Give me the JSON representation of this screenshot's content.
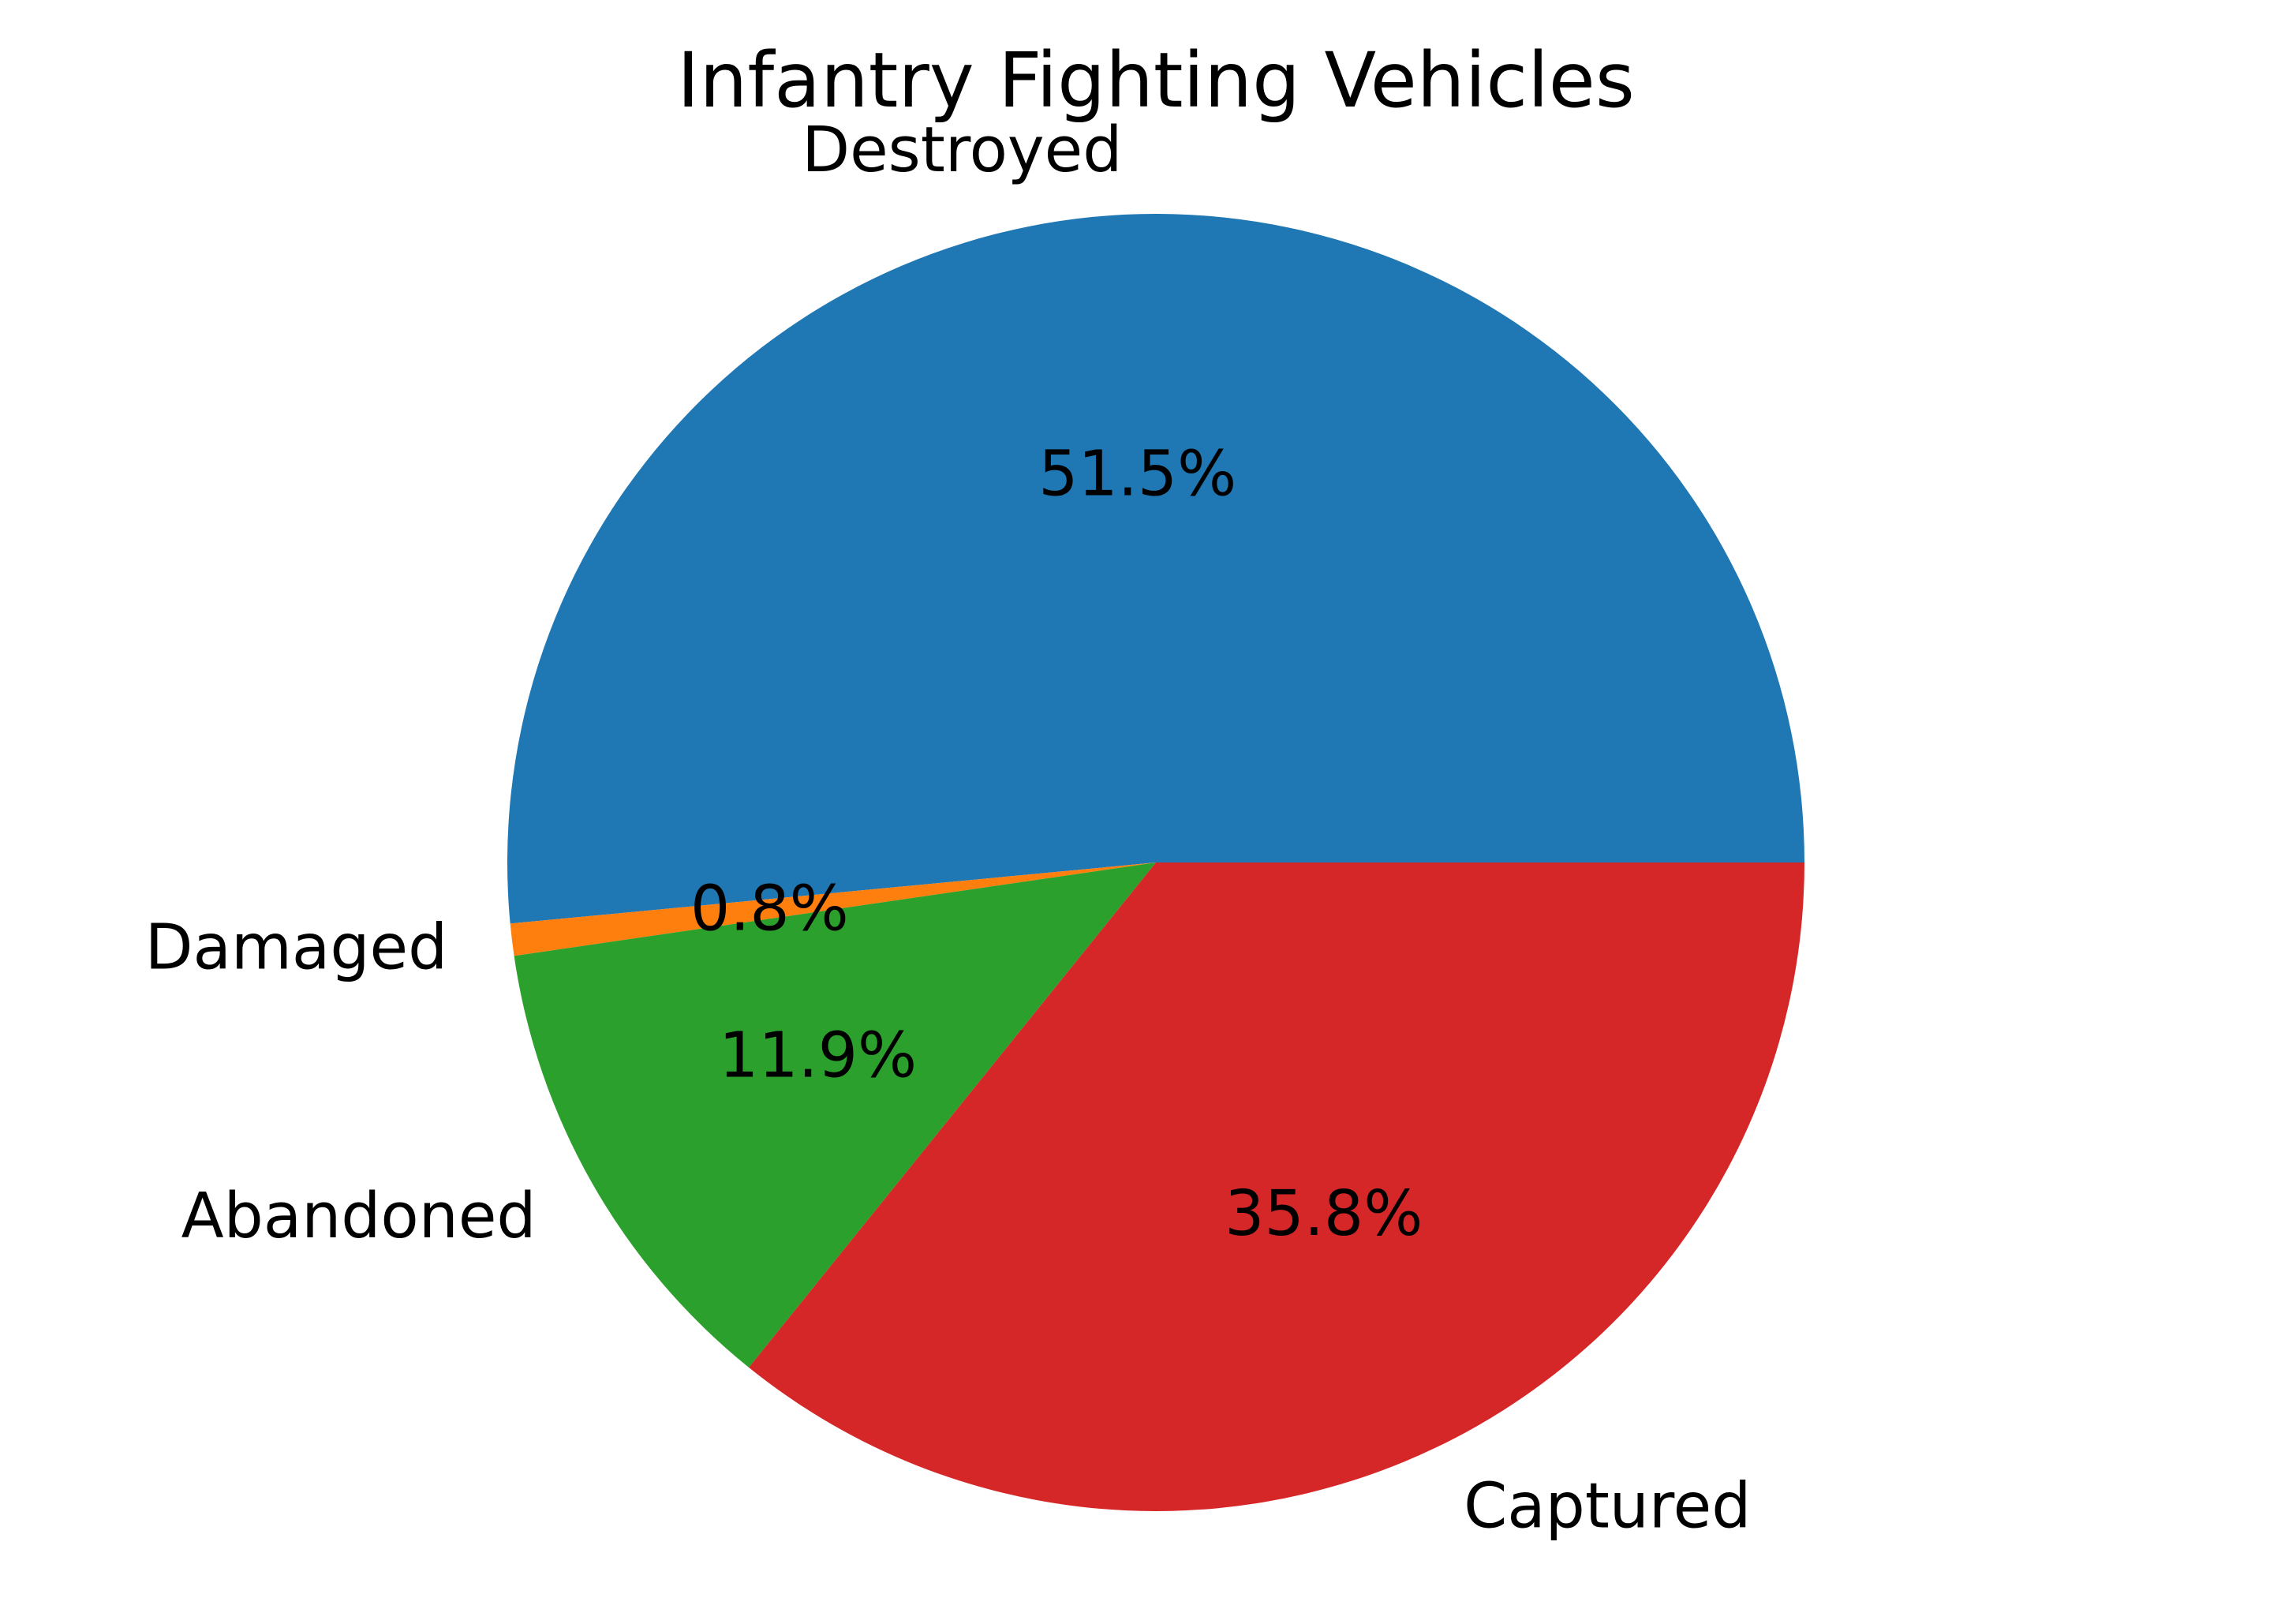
{
  "chart_data": {
    "type": "pie",
    "title": "Infantry Fighting Vehicles",
    "categories": [
      "Destroyed",
      "Damaged",
      "Abandoned",
      "Captured"
    ],
    "values": [
      51.5,
      0.8,
      11.9,
      35.8
    ],
    "value_labels": [
      "51.5%",
      "0.8%",
      "11.9%",
      "35.8%"
    ],
    "colors": [
      "#1f77b4",
      "#ff7f0e",
      "#2ca02c",
      "#d62728"
    ],
    "start_angle_deg": 0,
    "direction": "counterclockwise",
    "legend": "none"
  }
}
